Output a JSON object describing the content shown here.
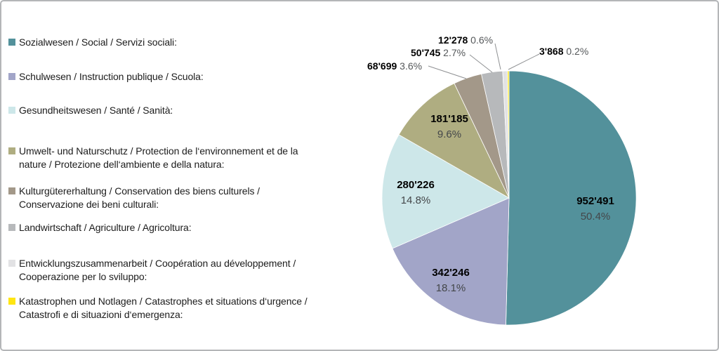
{
  "chart_data": {
    "type": "pie",
    "title": "",
    "legend_position": "left",
    "thousands_separator": "'",
    "direction": "clockwise",
    "start_angle_deg": 0,
    "slices": [
      {
        "legend_label": "Sozialwesen / Social / Servizi sociali:",
        "value": 952491,
        "value_label": "952'491",
        "pct": 50.4,
        "pct_label": "50.4%",
        "color": "#53919b",
        "label_placement": "inside"
      },
      {
        "legend_label": "Schulwesen / Instruction publique / Scuola:",
        "value": 342246,
        "value_label": "342'246",
        "pct": 18.1,
        "pct_label": "18.1%",
        "color": "#a2a5c8",
        "label_placement": "inside"
      },
      {
        "legend_label": "Gesundheitswesen / Santé / Sanità:",
        "value": 280226,
        "value_label": "280'226",
        "pct": 14.8,
        "pct_label": "14.8%",
        "color": "#cde7e9",
        "label_placement": "inside"
      },
      {
        "legend_label": "Umwelt- und Naturschutz / Protection de l‘environnement et de la\nnature / Protezione dell‘ambiente e della natura:",
        "value": 181185,
        "value_label": "181'185",
        "pct": 9.6,
        "pct_label": "9.6%",
        "color": "#afad81",
        "label_placement": "inside"
      },
      {
        "legend_label": "Kulturgütererhaltung / Conservation des biens culturels /\nConservazione dei beni culturali:",
        "value": 68699,
        "value_label": "68'699",
        "pct": 3.6,
        "pct_label": "3.6%",
        "color": "#a39889",
        "label_placement": "callout"
      },
      {
        "legend_label": "Landwirtschaft / Agriculture / Agricoltura:",
        "value": 50745,
        "value_label": "50'745",
        "pct": 2.7,
        "pct_label": "2.7%",
        "color": "#b7b9bb",
        "label_placement": "callout"
      },
      {
        "legend_label": "Entwicklungszusammenarbeit / Coopération au développement /\nCooperazione per lo sviluppo:",
        "value": 12278,
        "value_label": "12'278",
        "pct": 0.6,
        "pct_label": "0.6%",
        "color": "#e2e2e4",
        "label_placement": "callout"
      },
      {
        "legend_label": "Katastrophen und Notlagen / Catastrophes et situations d‘urgence /\nCatastrofi e di situazioni d‘emergenza:",
        "value": 3868,
        "value_label": "3'868",
        "pct": 0.2,
        "pct_label": "0.2%",
        "color": "#ffe512",
        "label_placement": "callout"
      }
    ]
  }
}
